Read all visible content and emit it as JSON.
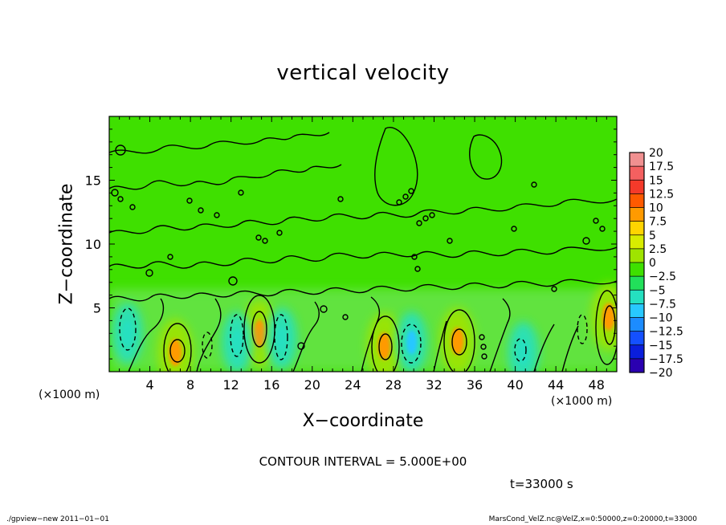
{
  "chart_data": {
    "type": "heatmap",
    "title": "vertical velocity",
    "xlabel": "X−coordinate",
    "ylabel": "Z−coordinate",
    "x_unit_left": "(×1000 m)",
    "x_unit_right": "(×1000 m)",
    "xlim": [
      0,
      50
    ],
    "ylim": [
      0,
      20
    ],
    "x_ticks": [
      4,
      8,
      12,
      16,
      20,
      24,
      28,
      32,
      36,
      40,
      44,
      48
    ],
    "x_tick_labels": [
      "4",
      "8",
      "12",
      "16",
      "20",
      "24",
      "28",
      "32",
      "36",
      "40",
      "44",
      "48"
    ],
    "y_ticks": [
      5,
      10,
      15
    ],
    "y_tick_labels": [
      "5",
      "10",
      "15"
    ],
    "contour_interval_text": "CONTOUR INTERVAL = 5.000E+00",
    "time_text": "t=33000 s",
    "colorbar": {
      "min": -20,
      "max": 20,
      "step": 2.5,
      "labels": [
        "20",
        "17.5",
        "15",
        "12.5",
        "10",
        "7.5",
        "5",
        "2.5",
        "0",
        "−2.5",
        "−5",
        "−7.5",
        "−10",
        "−12.5",
        "−15",
        "−17.5",
        "−20"
      ],
      "colors": [
        "#f09090",
        "#f46060",
        "#f53a2a",
        "#ff5a00",
        "#ff9a00",
        "#ffd400",
        "#d8ec00",
        "#9fe400",
        "#3fe000",
        "#22e05a",
        "#25e0c0",
        "#28c8ff",
        "#1c8cff",
        "#1450ff",
        "#0a1edc",
        "#2a00b0",
        "#6a00b8"
      ]
    },
    "cells": [
      {
        "x": 6.5,
        "z": 1.5,
        "value": 10
      },
      {
        "x": 14.8,
        "z": 3.0,
        "value": 10
      },
      {
        "x": 27.1,
        "z": 2.0,
        "value": 10
      },
      {
        "x": 34.3,
        "z": 2.4,
        "value": 10
      },
      {
        "x": 49.2,
        "z": 4.3,
        "value": 10
      },
      {
        "x": 1.8,
        "z": 3.0,
        "value": -5
      },
      {
        "x": 12.6,
        "z": 2.3,
        "value": -5
      },
      {
        "x": 17.0,
        "z": 2.6,
        "value": -5
      },
      {
        "x": 29.8,
        "z": 2.3,
        "value": -7.5
      },
      {
        "x": 40.8,
        "z": 1.5,
        "value": -5
      }
    ]
  },
  "footer": {
    "left": "./gpview−new   2011−01−01",
    "right": "MarsCond_VelZ.nc@VelZ,x=0:50000,z=0:20000,t=33000"
  }
}
